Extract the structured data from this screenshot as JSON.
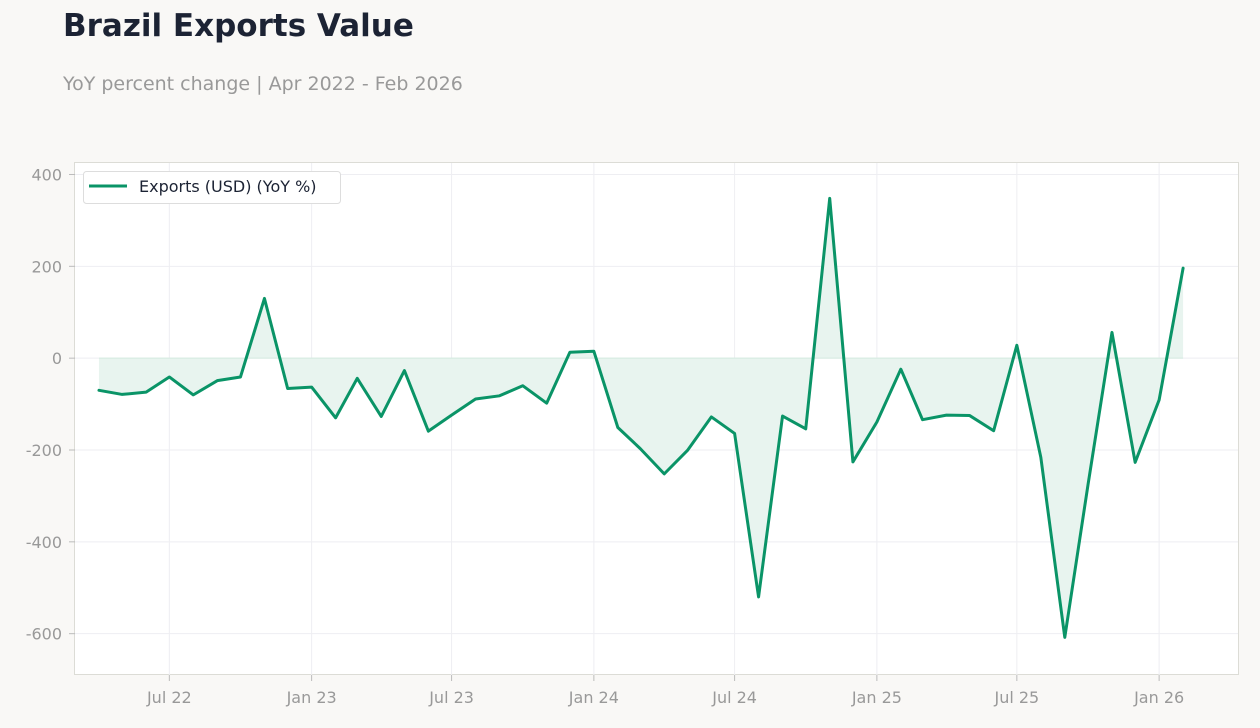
{
  "header": {
    "title": "Brazil Exports Value",
    "subtitle": "YoY percent change | Apr 2022 - Feb 2026"
  },
  "colors": {
    "line": "#0a9467",
    "fill": "#e8f4ef",
    "grid": "#eeeef2",
    "axis_text": "#999999",
    "background": "#f9f8f6",
    "plot_background": "#ffffff"
  },
  "chart_data": {
    "type": "line",
    "title": "",
    "xlabel": "",
    "ylabel": "",
    "ylim": [
      -690,
      425
    ],
    "xlim": [
      "2022-03-01",
      "2026-04-13"
    ],
    "yticks": [
      400,
      200,
      0,
      -200,
      -400,
      -600
    ],
    "ytick_labels": [
      "400",
      "200",
      "0",
      "-200",
      "-400",
      "-600"
    ],
    "xticks": [
      "2022-07-01",
      "2023-01-01",
      "2023-07-01",
      "2024-01-01",
      "2024-07-01",
      "2025-01-01",
      "2025-07-01",
      "2026-01-01"
    ],
    "xtick_labels": [
      "Jul 22",
      "Jan 23",
      "Jul 23",
      "Jan 24",
      "Jul 24",
      "Jan 25",
      "Jul 25",
      "Jan 26"
    ],
    "grid": true,
    "legend_position": "top-left",
    "area_fill_to_zero": true,
    "series": [
      {
        "name": "Exports (USD) (YoY %)",
        "x": [
          "2022-04-01",
          "2022-05-01",
          "2022-06-01",
          "2022-07-01",
          "2022-08-01",
          "2022-09-01",
          "2022-10-01",
          "2022-11-01",
          "2022-12-01",
          "2023-01-01",
          "2023-02-01",
          "2023-03-01",
          "2023-04-01",
          "2023-05-01",
          "2023-06-01",
          "2023-07-01",
          "2023-08-01",
          "2023-09-01",
          "2023-10-01",
          "2023-11-01",
          "2023-12-01",
          "2024-01-01",
          "2024-02-01",
          "2024-03-01",
          "2024-04-01",
          "2024-05-01",
          "2024-06-01",
          "2024-07-01",
          "2024-08-01",
          "2024-09-01",
          "2024-10-01",
          "2024-11-01",
          "2024-12-01",
          "2025-01-01",
          "2025-02-01",
          "2025-03-01",
          "2025-04-01",
          "2025-05-01",
          "2025-06-01",
          "2025-07-01",
          "2025-08-01",
          "2025-09-01",
          "2025-10-01",
          "2025-11-01",
          "2025-12-01",
          "2026-01-01",
          "2026-02-01"
        ],
        "values": [
          -70,
          -79,
          -74,
          -41,
          -80,
          -49,
          -41,
          130,
          -66,
          -63,
          -130,
          -44,
          -127,
          -27,
          -159,
          -124,
          -89,
          -82,
          -60,
          -98,
          13,
          15,
          -151,
          -197,
          -252,
          -201,
          -128,
          -164,
          -520,
          -126,
          -154,
          348,
          -226,
          -139,
          -24,
          -134,
          -124,
          -125,
          -158,
          28,
          -216,
          -608,
          -276,
          56,
          -227,
          -91,
          196
        ]
      }
    ]
  }
}
